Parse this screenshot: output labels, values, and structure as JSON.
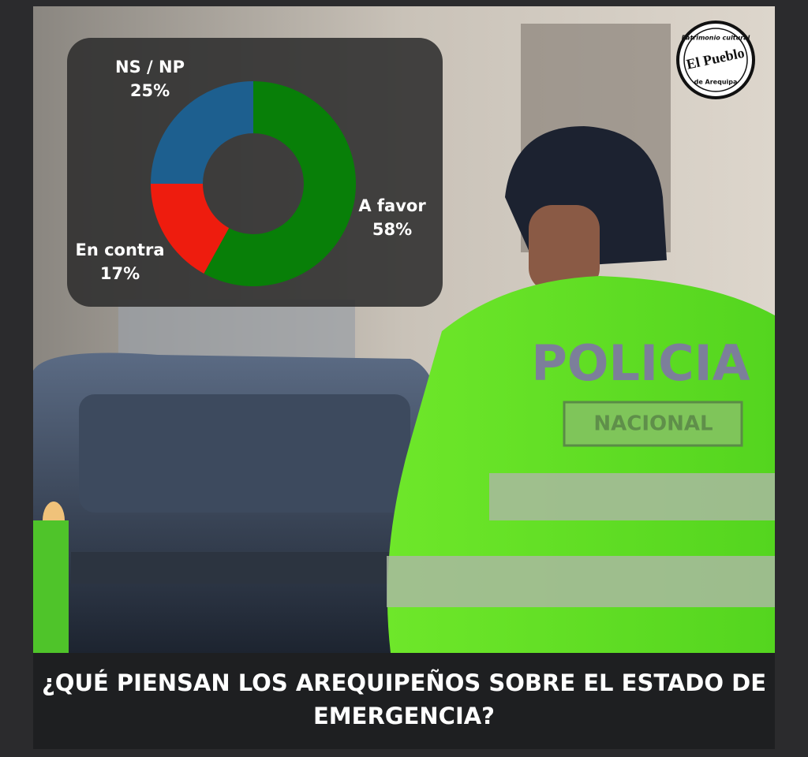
{
  "chart_data": {
    "type": "donut",
    "categories": [
      "A favor",
      "En contra",
      "NS / NP"
    ],
    "values": [
      58,
      17,
      25
    ],
    "value_labels": [
      "58%",
      "17%",
      "25%"
    ],
    "colors": [
      "#087f08",
      "#ee1c0e",
      "#1d5f8f"
    ]
  },
  "headline": [
    "¿QUÉ PIENSAN LOS AREQUIPEÑOS SOBRE EL ESTADO DE",
    "EMERGENCIA?"
  ],
  "logo": {
    "name": "El Pueblo",
    "top": "Patrimonio cultural",
    "bottom": "de Arequipa"
  },
  "photo_text": [
    "POLICIA",
    "NACIONAL"
  ]
}
